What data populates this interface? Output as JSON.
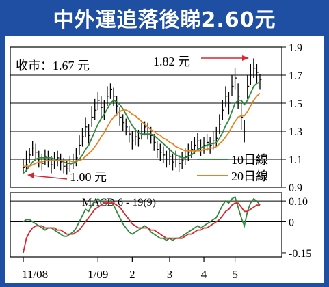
{
  "title": "中外運追落後睇2.60元",
  "chart_data": [
    {
      "type": "candlestick",
      "title": "",
      "ylim": [
        0.9,
        1.9
      ],
      "yticks": [
        0.9,
        1.1,
        1.3,
        1.5,
        1.7,
        1.9
      ],
      "ytick_labels": [
        "0.9",
        "1.1",
        "1.3",
        "1.5",
        "1.7",
        "1.9"
      ],
      "xtick_labels": [
        "11/08",
        "1/09",
        "2",
        "3",
        "4",
        "5"
      ],
      "grid": "horizontal",
      "annotations": {
        "close_label": "收市：1.67 元",
        "high_label": "1.82 元",
        "low_label": "1.00 元",
        "high_value": 1.82,
        "low_value": 1.0
      },
      "legend": {
        "position": "bottom-right",
        "entries": [
          "10日線",
          "20日線"
        ]
      },
      "series": [
        {
          "name": "price",
          "close": [
            1.04,
            1.06,
            1.13,
            1.18,
            1.15,
            1.1,
            1.07,
            1.12,
            1.1,
            1.06,
            1.09,
            1.11,
            1.08,
            1.05,
            1.03,
            1.06,
            1.08,
            1.11,
            1.2,
            1.26,
            1.33,
            1.27,
            1.4,
            1.45,
            1.52,
            1.47,
            1.44,
            1.55,
            1.6,
            1.55,
            1.48,
            1.4,
            1.36,
            1.33,
            1.28,
            1.23,
            1.26,
            1.25,
            1.3,
            1.33,
            1.3,
            1.27,
            1.22,
            1.17,
            1.15,
            1.13,
            1.1,
            1.12,
            1.08,
            1.1,
            1.07,
            1.09,
            1.12,
            1.15,
            1.17,
            1.2,
            1.23,
            1.18,
            1.2,
            1.22,
            1.2,
            1.23,
            1.25,
            1.35,
            1.45,
            1.55,
            1.5,
            1.62,
            1.68,
            1.55,
            1.4,
            1.3,
            1.62,
            1.7,
            1.75,
            1.72,
            1.67
          ],
          "high": [
            1.1,
            1.16,
            1.18,
            1.23,
            1.21,
            1.16,
            1.14,
            1.17,
            1.16,
            1.12,
            1.15,
            1.16,
            1.14,
            1.11,
            1.09,
            1.12,
            1.14,
            1.18,
            1.27,
            1.32,
            1.4,
            1.35,
            1.48,
            1.53,
            1.58,
            1.55,
            1.52,
            1.62,
            1.64,
            1.61,
            1.55,
            1.47,
            1.42,
            1.39,
            1.34,
            1.3,
            1.32,
            1.31,
            1.36,
            1.37,
            1.36,
            1.33,
            1.28,
            1.23,
            1.21,
            1.19,
            1.16,
            1.18,
            1.14,
            1.16,
            1.13,
            1.15,
            1.18,
            1.21,
            1.23,
            1.26,
            1.29,
            1.24,
            1.26,
            1.28,
            1.26,
            1.3,
            1.33,
            1.42,
            1.52,
            1.62,
            1.58,
            1.7,
            1.75,
            1.64,
            1.5,
            1.38,
            1.7,
            1.78,
            1.82,
            1.78,
            1.71
          ],
          "low": [
            1.0,
            1.01,
            1.07,
            1.12,
            1.09,
            1.04,
            1.02,
            1.06,
            1.04,
            1.0,
            1.03,
            1.05,
            1.02,
            1.0,
            0.99,
            1.01,
            1.03,
            1.05,
            1.13,
            1.19,
            1.26,
            1.21,
            1.33,
            1.38,
            1.45,
            1.4,
            1.38,
            1.48,
            1.53,
            1.48,
            1.41,
            1.34,
            1.3,
            1.27,
            1.22,
            1.17,
            1.2,
            1.19,
            1.24,
            1.27,
            1.24,
            1.21,
            1.16,
            1.11,
            1.09,
            1.07,
            1.04,
            1.06,
            1.02,
            1.04,
            1.01,
            1.03,
            1.06,
            1.09,
            1.11,
            1.14,
            1.17,
            1.12,
            1.14,
            1.16,
            1.14,
            1.17,
            1.19,
            1.28,
            1.38,
            1.47,
            1.42,
            1.55,
            1.6,
            1.46,
            1.31,
            1.22,
            1.53,
            1.63,
            1.68,
            1.64,
            1.6
          ]
        },
        {
          "name": "10日線",
          "color": "#2e8b3a",
          "values": [
            1.0,
            1.02,
            1.05,
            1.08,
            1.1,
            1.11,
            1.11,
            1.11,
            1.11,
            1.11,
            1.1,
            1.09,
            1.09,
            1.08,
            1.07,
            1.07,
            1.07,
            1.08,
            1.1,
            1.13,
            1.17,
            1.2,
            1.25,
            1.3,
            1.35,
            1.39,
            1.42,
            1.46,
            1.5,
            1.52,
            1.51,
            1.49,
            1.46,
            1.42,
            1.38,
            1.34,
            1.31,
            1.29,
            1.28,
            1.28,
            1.28,
            1.28,
            1.27,
            1.25,
            1.23,
            1.21,
            1.19,
            1.17,
            1.15,
            1.13,
            1.12,
            1.11,
            1.11,
            1.12,
            1.13,
            1.15,
            1.17,
            1.18,
            1.19,
            1.2,
            1.21,
            1.21,
            1.22,
            1.25,
            1.29,
            1.34,
            1.38,
            1.44,
            1.5,
            1.52,
            1.52,
            1.49,
            1.52,
            1.57,
            1.62,
            1.64,
            1.65
          ]
        },
        {
          "name": "20日線",
          "color": "#e8821e",
          "values": [
            1.05,
            1.05,
            1.05,
            1.06,
            1.07,
            1.08,
            1.08,
            1.09,
            1.09,
            1.09,
            1.09,
            1.09,
            1.09,
            1.09,
            1.09,
            1.09,
            1.08,
            1.09,
            1.09,
            1.1,
            1.12,
            1.14,
            1.16,
            1.19,
            1.22,
            1.26,
            1.29,
            1.33,
            1.37,
            1.4,
            1.42,
            1.44,
            1.45,
            1.45,
            1.44,
            1.42,
            1.41,
            1.39,
            1.37,
            1.35,
            1.33,
            1.31,
            1.3,
            1.28,
            1.27,
            1.25,
            1.24,
            1.22,
            1.21,
            1.19,
            1.18,
            1.17,
            1.16,
            1.16,
            1.16,
            1.16,
            1.16,
            1.16,
            1.17,
            1.17,
            1.18,
            1.18,
            1.19,
            1.21,
            1.23,
            1.26,
            1.29,
            1.33,
            1.37,
            1.4,
            1.41,
            1.41,
            1.44,
            1.48,
            1.52,
            1.55,
            1.57
          ]
        }
      ]
    },
    {
      "type": "line",
      "title": "MACD 6 - 19(9)",
      "ylim": [
        -0.17,
        0.14
      ],
      "yticks": [
        0.1,
        0.0,
        -0.15
      ],
      "ytick_labels": [
        "0.10",
        "0",
        "-0.15"
      ],
      "series": [
        {
          "name": "MACD",
          "color": "#2e8b3a",
          "values": [
            0.0,
            0.01,
            0.01,
            0.0,
            -0.01,
            -0.02,
            -0.03,
            -0.04,
            -0.03,
            -0.03,
            -0.04,
            -0.05,
            -0.06,
            -0.07,
            -0.07,
            -0.06,
            -0.05,
            -0.03,
            0.0,
            0.03,
            0.06,
            0.05,
            0.08,
            0.1,
            0.11,
            0.1,
            0.09,
            0.09,
            0.1,
            0.08,
            0.05,
            0.02,
            -0.01,
            -0.03,
            -0.05,
            -0.06,
            -0.05,
            -0.04,
            -0.03,
            -0.02,
            -0.03,
            -0.05,
            -0.06,
            -0.07,
            -0.08,
            -0.08,
            -0.09,
            -0.08,
            -0.09,
            -0.08,
            -0.08,
            -0.07,
            -0.06,
            -0.05,
            -0.04,
            -0.03,
            -0.02,
            -0.03,
            -0.02,
            -0.01,
            0.0,
            0.01,
            0.02,
            0.05,
            0.08,
            0.1,
            0.09,
            0.11,
            0.12,
            0.07,
            0.02,
            -0.02,
            0.05,
            0.09,
            0.11,
            0.1,
            0.08
          ]
        },
        {
          "name": "Signal",
          "color": "#d9262e",
          "values": [
            -0.15,
            -0.08,
            -0.05,
            -0.03,
            -0.02,
            -0.02,
            -0.02,
            -0.03,
            -0.03,
            -0.03,
            -0.03,
            -0.04,
            -0.04,
            -0.05,
            -0.06,
            -0.06,
            -0.06,
            -0.05,
            -0.04,
            -0.02,
            0.0,
            0.02,
            0.04,
            0.06,
            0.07,
            0.08,
            0.09,
            0.09,
            0.09,
            0.09,
            0.08,
            0.07,
            0.05,
            0.03,
            0.01,
            -0.01,
            -0.02,
            -0.03,
            -0.03,
            -0.03,
            -0.03,
            -0.04,
            -0.04,
            -0.05,
            -0.06,
            -0.07,
            -0.08,
            -0.08,
            -0.08,
            -0.08,
            -0.08,
            -0.08,
            -0.07,
            -0.06,
            -0.06,
            -0.05,
            -0.04,
            -0.04,
            -0.03,
            -0.03,
            -0.02,
            -0.01,
            0.0,
            0.01,
            0.03,
            0.05,
            0.06,
            0.08,
            0.09,
            0.09,
            0.07,
            0.05,
            0.05,
            0.06,
            0.07,
            0.08,
            0.08
          ]
        }
      ]
    }
  ]
}
